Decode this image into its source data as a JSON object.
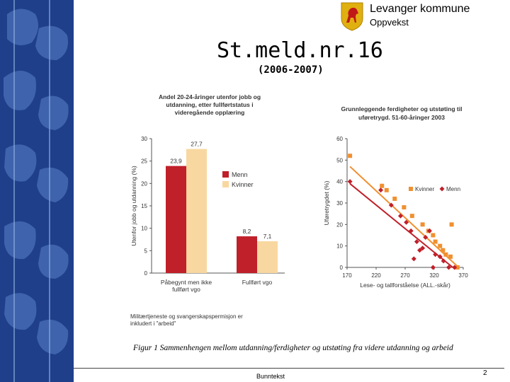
{
  "header": {
    "org_name": "Levanger kommune",
    "org_sub": "Oppvekst",
    "brand_color": "#e0b010",
    "logo_icon": "horse-icon"
  },
  "slide": {
    "title": "St.meld.nr.16",
    "subtitle": "(2006-2007)"
  },
  "chart_data": [
    {
      "type": "bar",
      "title": "Andel 20-24-åringer utenfor jobb og utdanning, etter fullførtstatus i videregående opplæring",
      "ylabel": "Utenfor jobb og utdanning (%)",
      "xlabel": "",
      "categories": [
        "Påbegynt men ikke fullført vgo",
        "Fullført vgo"
      ],
      "ylim": [
        0,
        30
      ],
      "yticks": [
        "0",
        "5",
        "10",
        "15",
        "20",
        "25",
        "30"
      ],
      "series": [
        {
          "name": "Menn",
          "color": "#c0202a",
          "values": [
            23.9,
            8.2
          ],
          "labels": [
            "23,9",
            "8,2"
          ]
        },
        {
          "name": "Kvinner",
          "color": "#f8d8a0",
          "values": [
            27.7,
            7.1
          ],
          "labels": [
            "27,7",
            "7,1"
          ]
        }
      ],
      "legend_position": "right",
      "note": "Militærtjeneste og svangerskapspermisjon er inkludert i \"arbeid\""
    },
    {
      "type": "scatter",
      "title": "Grunnleggende ferdigheter og utstøting til uføretrygd. 51-60-åringer 2003",
      "xlabel": "Lese- og tallforståelse (ALL.-skår)",
      "ylabel": "Uføretrygdet (%)",
      "xlim": [
        170,
        370
      ],
      "ylim": [
        0,
        60
      ],
      "xticks": [
        "170",
        "220",
        "270",
        "320",
        "370"
      ],
      "yticks": [
        "0",
        "10",
        "20",
        "30",
        "40",
        "50",
        "60"
      ],
      "legend_position": "top-right",
      "series": [
        {
          "name": "Kvinner",
          "color": "#f09030",
          "marker": "square",
          "points": [
            [
              175,
              52
            ],
            [
              230,
              38
            ],
            [
              238,
              36
            ],
            [
              252,
              32
            ],
            [
              268,
              28
            ],
            [
              282,
              24
            ],
            [
              300,
              20
            ],
            [
              310,
              17
            ],
            [
              318,
              15
            ],
            [
              322,
              12
            ],
            [
              330,
              10
            ],
            [
              335,
              8
            ],
            [
              340,
              6
            ],
            [
              350,
              20
            ],
            [
              348,
              5
            ],
            [
              360,
              0
            ]
          ],
          "trend": [
            [
              175,
              47
            ],
            [
              362,
              0
            ]
          ]
        },
        {
          "name": "Menn",
          "color": "#c0202a",
          "marker": "diamond",
          "points": [
            [
              175,
              40
            ],
            [
              228,
              36
            ],
            [
              246,
              29
            ],
            [
              262,
              24
            ],
            [
              272,
              21
            ],
            [
              280,
              17
            ],
            [
              290,
              12
            ],
            [
              295,
              8
            ],
            [
              305,
              14
            ],
            [
              312,
              17
            ],
            [
              318,
              0
            ],
            [
              322,
              6
            ],
            [
              330,
              5
            ],
            [
              336,
              3
            ],
            [
              345,
              0
            ],
            [
              355,
              0
            ],
            [
              285,
              4
            ],
            [
              300,
              9
            ]
          ],
          "trend": [
            [
              175,
              39
            ],
            [
              352,
              0
            ]
          ]
        }
      ]
    }
  ],
  "caption": "Figur 1 Sammenhengen mellom utdanning/ferdigheter og utstøting fra videre utdanning og arbeid",
  "footer": {
    "text": "Bunntekst",
    "page": "2"
  }
}
